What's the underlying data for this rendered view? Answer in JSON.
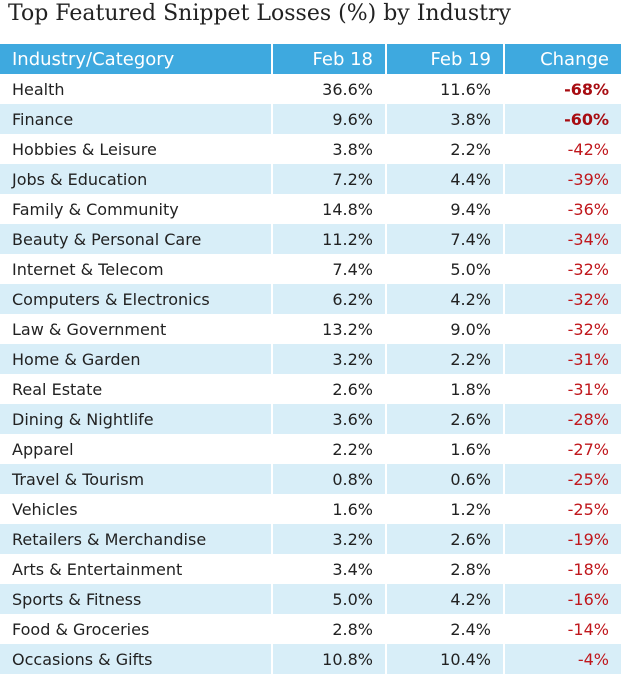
{
  "title": "Top Featured Snippet Losses (%) by Industry",
  "table": {
    "header": [
      "Industry/Category",
      "Feb 18",
      "Feb 19",
      "Change"
    ],
    "rows": [
      [
        "Health",
        "36.6%",
        "11.6%",
        "-68%"
      ],
      [
        "Finance",
        "9.6%",
        "3.8%",
        "-60%"
      ],
      [
        "Hobbies & Leisure",
        "3.8%",
        "2.2%",
        "-42%"
      ],
      [
        "Jobs & Education",
        "7.2%",
        "4.4%",
        "-39%"
      ],
      [
        "Family & Community",
        "14.8%",
        "9.4%",
        "-36%"
      ],
      [
        "Beauty & Personal Care",
        "11.2%",
        "7.4%",
        "-34%"
      ],
      [
        "Internet & Telecom",
        "7.4%",
        "5.0%",
        "-32%"
      ],
      [
        "Computers & Electronics",
        "6.2%",
        "4.2%",
        "-32%"
      ],
      [
        "Law & Government",
        "13.2%",
        "9.0%",
        "-32%"
      ],
      [
        "Home & Garden",
        "3.2%",
        "2.2%",
        "-31%"
      ],
      [
        "Real Estate",
        "2.6%",
        "1.8%",
        "-31%"
      ],
      [
        "Dining & Nightlife",
        "3.6%",
        "2.6%",
        "-28%"
      ],
      [
        "Apparel",
        "2.2%",
        "1.6%",
        "-27%"
      ],
      [
        "Travel & Tourism",
        "0.8%",
        "0.6%",
        "-25%"
      ],
      [
        "Vehicles",
        "1.6%",
        "1.2%",
        "-25%"
      ],
      [
        "Retailers & Merchandise",
        "3.2%",
        "2.6%",
        "-19%"
      ],
      [
        "Arts & Entertainment",
        "3.4%",
        "2.8%",
        "-18%"
      ],
      [
        "Sports & Fitness",
        "5.0%",
        "4.2%",
        "-16%"
      ],
      [
        "Food & Groceries",
        "2.8%",
        "2.4%",
        "-14%"
      ],
      [
        "Occasions & Gifts",
        "10.8%",
        "10.4%",
        "-4%"
      ]
    ]
  }
}
